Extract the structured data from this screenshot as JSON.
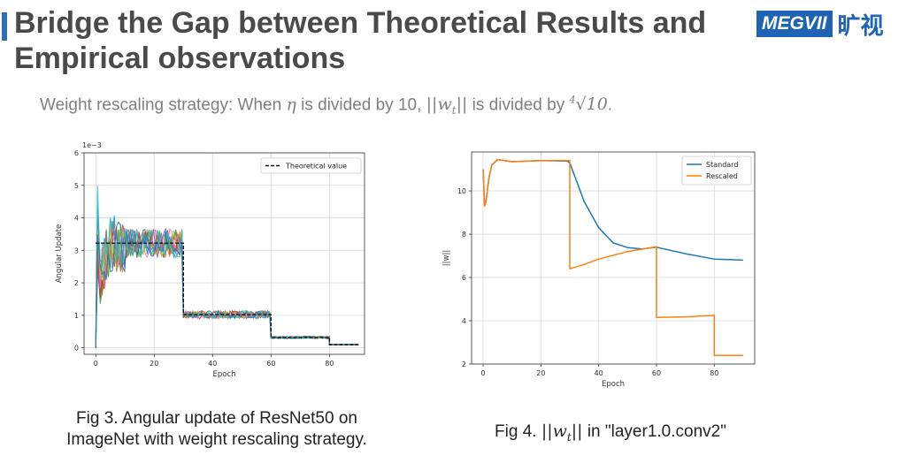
{
  "slide": {
    "title_line1": "Bridge the Gap between Theoretical Results and",
    "title_line2": "Empirical observations",
    "logo_text": "MEGVII",
    "logo_cn": "旷视",
    "subtitle_pre": "Weight rescaling strategy: When",
    "subtitle_eta": "η",
    "subtitle_mid": "is divided by 10,",
    "subtitle_norm": "||w",
    "subtitle_sub": "t",
    "subtitle_norm_end": "||",
    "subtitle_post": "is divided by",
    "subtitle_root_index": "4",
    "subtitle_root_value": "√10",
    "subtitle_end": ".",
    "caption_left_line1": "Fig 3. Angular update of ResNet50 on",
    "caption_left_line2": "ImageNet with weight rescaling strategy.",
    "caption_right_pre": "Fig 4.",
    "caption_right_norm": "||w",
    "caption_right_sub": "t",
    "caption_right_norm_end": "||",
    "caption_right_post": "in \"layer1.0.conv2\""
  },
  "chart_data": [
    {
      "type": "line",
      "title": "",
      "xlabel": "Epoch",
      "ylabel": "Angular Update",
      "y_scale_label": "1e−3",
      "xlim": [
        -4,
        92
      ],
      "ylim": [
        -0.2,
        6
      ],
      "xticks": [
        0,
        20,
        40,
        60,
        80
      ],
      "yticks": [
        0,
        1,
        2,
        3,
        4,
        5,
        6
      ],
      "grid": true,
      "legend": "top-right",
      "series": [
        {
          "name": "Theoretical value",
          "style": "dashed",
          "color": "#111111",
          "x": [
            0,
            30,
            30,
            60,
            60,
            80,
            80,
            90
          ],
          "y": [
            3.22,
            3.22,
            1.02,
            1.02,
            0.32,
            0.32,
            0.1,
            0.1
          ]
        }
      ],
      "noisy_layers": {
        "count": 11,
        "levels": [
          3.22,
          1.02,
          0.32,
          0.1
        ],
        "boundaries": [
          0,
          30,
          60,
          80,
          90
        ]
      }
    },
    {
      "type": "line",
      "title": "",
      "xlabel": "Epoch",
      "ylabel": "||w||",
      "xlim": [
        -4,
        94
      ],
      "ylim": [
        2,
        11.8
      ],
      "xticks": [
        0,
        20,
        40,
        60,
        80
      ],
      "yticks": [
        2,
        4,
        6,
        8,
        10
      ],
      "grid": true,
      "legend": "top-right",
      "series": [
        {
          "name": "Standard",
          "color": "#1f77b4",
          "x": [
            0,
            0.5,
            1,
            2,
            3,
            5,
            10,
            20,
            29,
            30,
            35,
            40,
            45,
            50,
            55,
            60,
            70,
            80,
            90
          ],
          "y": [
            11.0,
            9.3,
            9.5,
            10.6,
            11.2,
            11.45,
            11.35,
            11.4,
            11.38,
            11.3,
            9.5,
            8.3,
            7.6,
            7.38,
            7.32,
            7.4,
            7.1,
            6.85,
            6.8
          ]
        },
        {
          "name": "Rescaled",
          "color": "#ff7f0e",
          "x": [
            0,
            0.5,
            1,
            2,
            3,
            5,
            10,
            20,
            30,
            30,
            35,
            40,
            50,
            60,
            60,
            70,
            80,
            80,
            90
          ],
          "y": [
            11.0,
            9.3,
            9.5,
            10.6,
            11.2,
            11.45,
            11.35,
            11.4,
            11.4,
            6.4,
            6.6,
            6.85,
            7.2,
            7.42,
            4.15,
            4.18,
            4.25,
            2.4,
            2.4
          ]
        }
      ]
    }
  ]
}
